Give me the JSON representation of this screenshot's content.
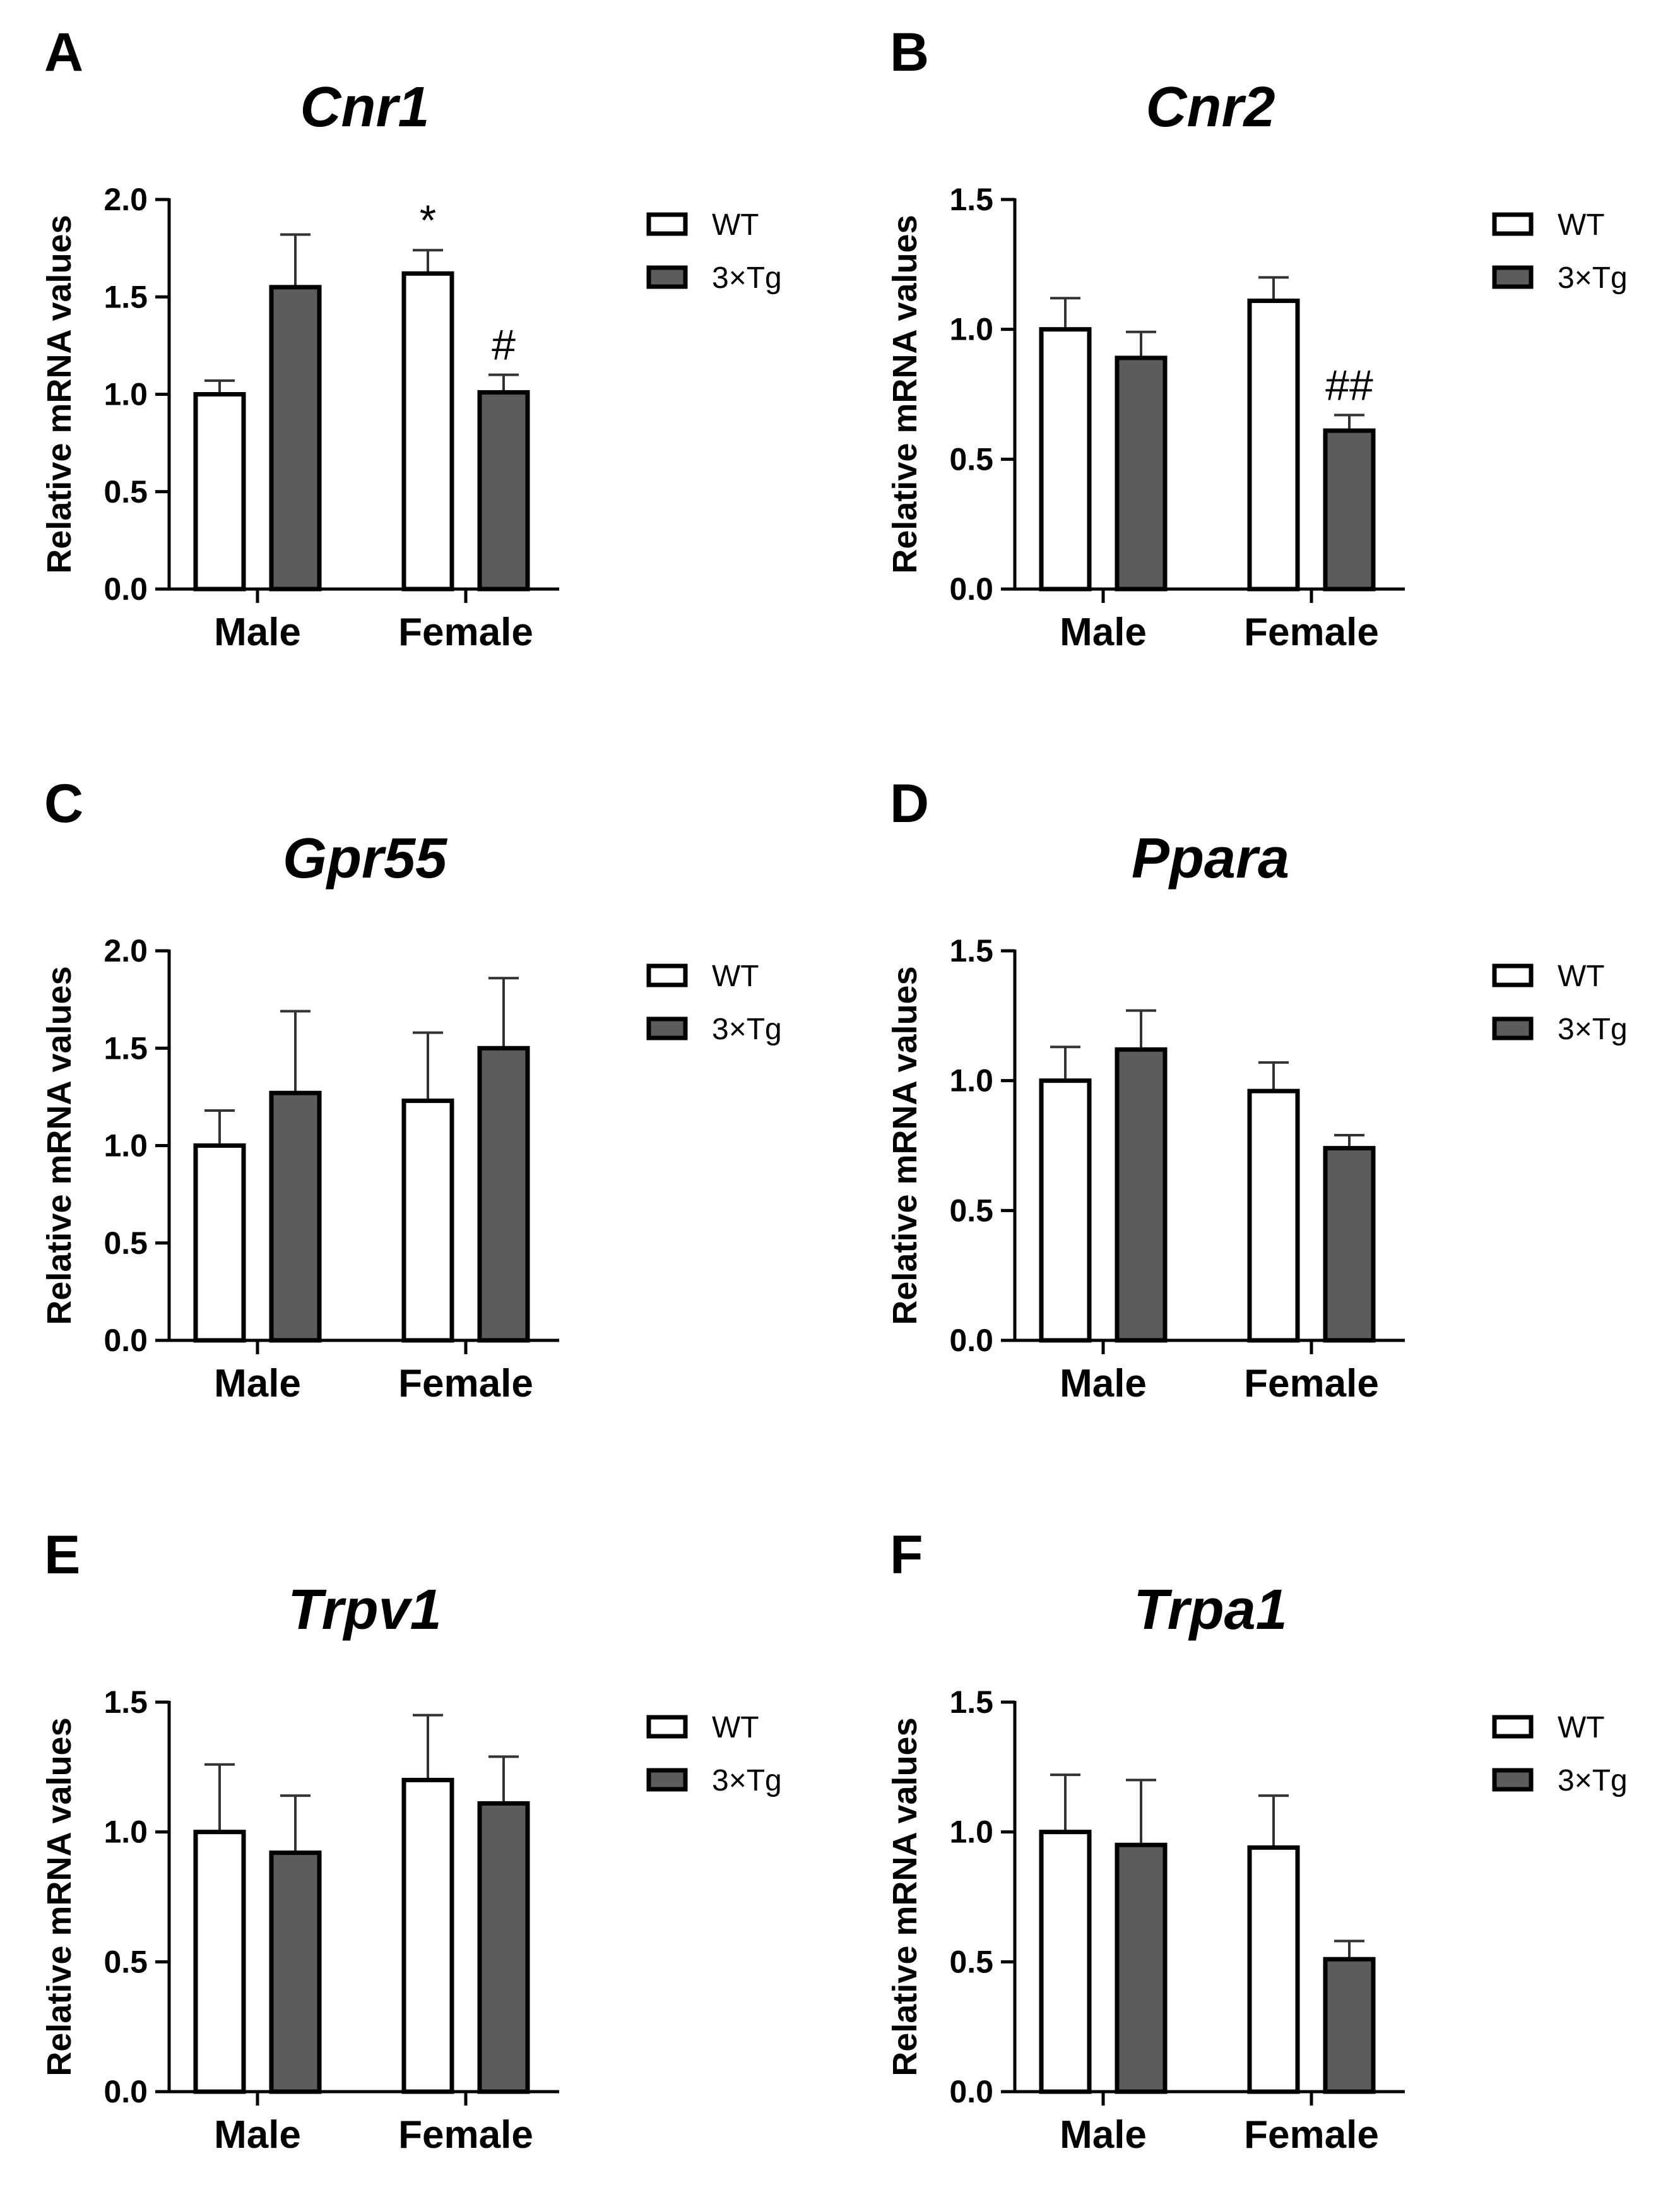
{
  "figure": {
    "colors": {
      "wt_fill": "#ffffff",
      "tg_fill": "#5c5c5c",
      "stroke": "#000000",
      "error_bar": "#333333"
    }
  },
  "chart_data": [
    {
      "type": "bar",
      "panel": "A",
      "title": "Cnr1",
      "ylabel": "Relative mRNA values",
      "xlabel": "",
      "categories": [
        "Male",
        "Female"
      ],
      "ylim": [
        0,
        2.0
      ],
      "yticks": [
        "0.0",
        "0.5",
        "1.0",
        "1.5",
        "2.0"
      ],
      "series": [
        {
          "name": "WT",
          "values": [
            1.0,
            1.62
          ],
          "errors": [
            0.07,
            0.12
          ]
        },
        {
          "name": "3×Tg",
          "values": [
            1.55,
            1.01
          ],
          "errors": [
            0.27,
            0.09
          ]
        }
      ],
      "annotations": [
        {
          "text": "*",
          "category": 1,
          "series": 0
        },
        {
          "text": "#",
          "category": 1,
          "series": 1
        }
      ],
      "legend": [
        "WT",
        "3×Tg"
      ]
    },
    {
      "type": "bar",
      "panel": "B",
      "title": "Cnr2",
      "ylabel": "Relative mRNA values",
      "xlabel": "",
      "categories": [
        "Male",
        "Female"
      ],
      "ylim": [
        0,
        1.5
      ],
      "yticks": [
        "0.0",
        "0.5",
        "1.0",
        "1.5"
      ],
      "series": [
        {
          "name": "WT",
          "values": [
            1.0,
            1.11
          ],
          "errors": [
            0.12,
            0.09
          ]
        },
        {
          "name": "3×Tg",
          "values": [
            0.89,
            0.61
          ],
          "errors": [
            0.1,
            0.06
          ]
        }
      ],
      "annotations": [
        {
          "text": "##",
          "category": 1,
          "series": 1
        }
      ],
      "legend": [
        "WT",
        "3×Tg"
      ]
    },
    {
      "type": "bar",
      "panel": "C",
      "title": "Gpr55",
      "ylabel": "Relative mRNA values",
      "xlabel": "",
      "categories": [
        "Male",
        "Female"
      ],
      "ylim": [
        0,
        2.0
      ],
      "yticks": [
        "0.0",
        "0.5",
        "1.0",
        "1.5",
        "2.0"
      ],
      "series": [
        {
          "name": "WT",
          "values": [
            1.0,
            1.23
          ],
          "errors": [
            0.18,
            0.35
          ]
        },
        {
          "name": "3×Tg",
          "values": [
            1.27,
            1.5
          ],
          "errors": [
            0.42,
            0.36
          ]
        }
      ],
      "annotations": [],
      "legend": [
        "WT",
        "3×Tg"
      ]
    },
    {
      "type": "bar",
      "panel": "D",
      "title": "Ppara",
      "ylabel": "Relative mRNA values",
      "xlabel": "",
      "categories": [
        "Male",
        "Female"
      ],
      "ylim": [
        0,
        1.5
      ],
      "yticks": [
        "0.0",
        "0.5",
        "1.0",
        "1.5"
      ],
      "series": [
        {
          "name": "WT",
          "values": [
            1.0,
            0.96
          ],
          "errors": [
            0.13,
            0.11
          ]
        },
        {
          "name": "3×Tg",
          "values": [
            1.12,
            0.74
          ],
          "errors": [
            0.15,
            0.05
          ]
        }
      ],
      "annotations": [],
      "legend": [
        "WT",
        "3×Tg"
      ]
    },
    {
      "type": "bar",
      "panel": "E",
      "title": "Trpv1",
      "ylabel": "Relative mRNA values",
      "xlabel": "",
      "categories": [
        "Male",
        "Female"
      ],
      "ylim": [
        0,
        1.5
      ],
      "yticks": [
        "0.0",
        "0.5",
        "1.0",
        "1.5"
      ],
      "series": [
        {
          "name": "WT",
          "values": [
            1.0,
            1.2
          ],
          "errors": [
            0.26,
            0.25
          ]
        },
        {
          "name": "3×Tg",
          "values": [
            0.92,
            1.11
          ],
          "errors": [
            0.22,
            0.18
          ]
        }
      ],
      "annotations": [],
      "legend": [
        "WT",
        "3×Tg"
      ]
    },
    {
      "type": "bar",
      "panel": "F",
      "title": "Trpa1",
      "ylabel": "Relative mRNA values",
      "xlabel": "",
      "categories": [
        "Male",
        "Female"
      ],
      "ylim": [
        0,
        1.5
      ],
      "yticks": [
        "0.0",
        "0.5",
        "1.0",
        "1.5"
      ],
      "series": [
        {
          "name": "WT",
          "values": [
            1.0,
            0.94
          ],
          "errors": [
            0.22,
            0.2
          ]
        },
        {
          "name": "3×Tg",
          "values": [
            0.95,
            0.51
          ],
          "errors": [
            0.25,
            0.07
          ]
        }
      ],
      "annotations": [],
      "legend": [
        "WT",
        "3×Tg"
      ]
    }
  ]
}
